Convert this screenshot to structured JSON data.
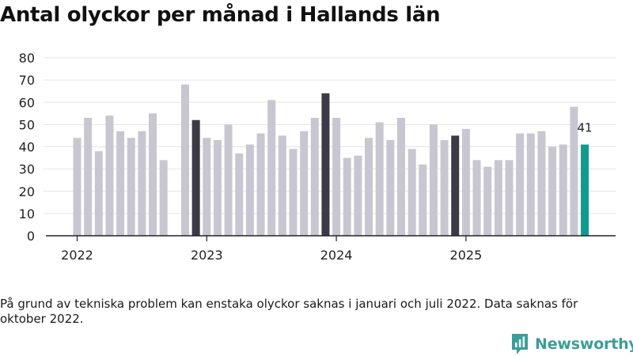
{
  "title": "Antal olyckor per månad i Hallands län",
  "note": "På grund av tekniska problem kan enstaka olyckor saknas i januari och juli 2022. Data saknas för oktober 2022.",
  "brand": {
    "name": "Newsworthy",
    "icon": "newsworthy-logo-icon"
  },
  "colors": {
    "default": "#c8c7d1",
    "december": "#3b3a46",
    "latest": "#0f9b8e",
    "grid": "#e4e4e4",
    "axis": "#222222"
  },
  "chart_data": {
    "type": "bar",
    "title": "Antal olyckor per månad i Hallands län",
    "xlabel": "",
    "ylabel": "",
    "ylim": [
      0,
      80
    ],
    "yticks": [
      "0",
      "10",
      "20",
      "30",
      "40",
      "50",
      "60",
      "70",
      "80"
    ],
    "xticks": [
      "2022",
      "2023",
      "2024",
      "2025"
    ],
    "grid": true,
    "categories": [
      "2022-01",
      "2022-02",
      "2022-03",
      "2022-04",
      "2022-05",
      "2022-06",
      "2022-07",
      "2022-08",
      "2022-09",
      "2022-10",
      "2022-11",
      "2022-12",
      "2023-01",
      "2023-02",
      "2023-03",
      "2023-04",
      "2023-05",
      "2023-06",
      "2023-07",
      "2023-08",
      "2023-09",
      "2023-10",
      "2023-11",
      "2023-12",
      "2024-01",
      "2024-02",
      "2024-03",
      "2024-04",
      "2024-05",
      "2024-06",
      "2024-07",
      "2024-08",
      "2024-09",
      "2024-10",
      "2024-11",
      "2024-12",
      "2025-01",
      "2025-02",
      "2025-03",
      "2025-04",
      "2025-05",
      "2025-06",
      "2025-07",
      "2025-08",
      "2025-09",
      "2025-10",
      "2025-11",
      "2025-12"
    ],
    "values": [
      44,
      53,
      38,
      54,
      47,
      44,
      47,
      55,
      34,
      null,
      68,
      52,
      44,
      43,
      50,
      37,
      41,
      46,
      61,
      45,
      39,
      47,
      53,
      64,
      53,
      35,
      36,
      44,
      51,
      43,
      53,
      39,
      32,
      50,
      43,
      45,
      48,
      34,
      31,
      34,
      34,
      46,
      46,
      47,
      40,
      41,
      58,
      41
    ],
    "highlight": [
      "2022-12",
      "2023-12",
      "2024-12"
    ],
    "latest": "2025-12",
    "annotations": [
      {
        "category": "2025-12",
        "text": "41"
      }
    ]
  }
}
